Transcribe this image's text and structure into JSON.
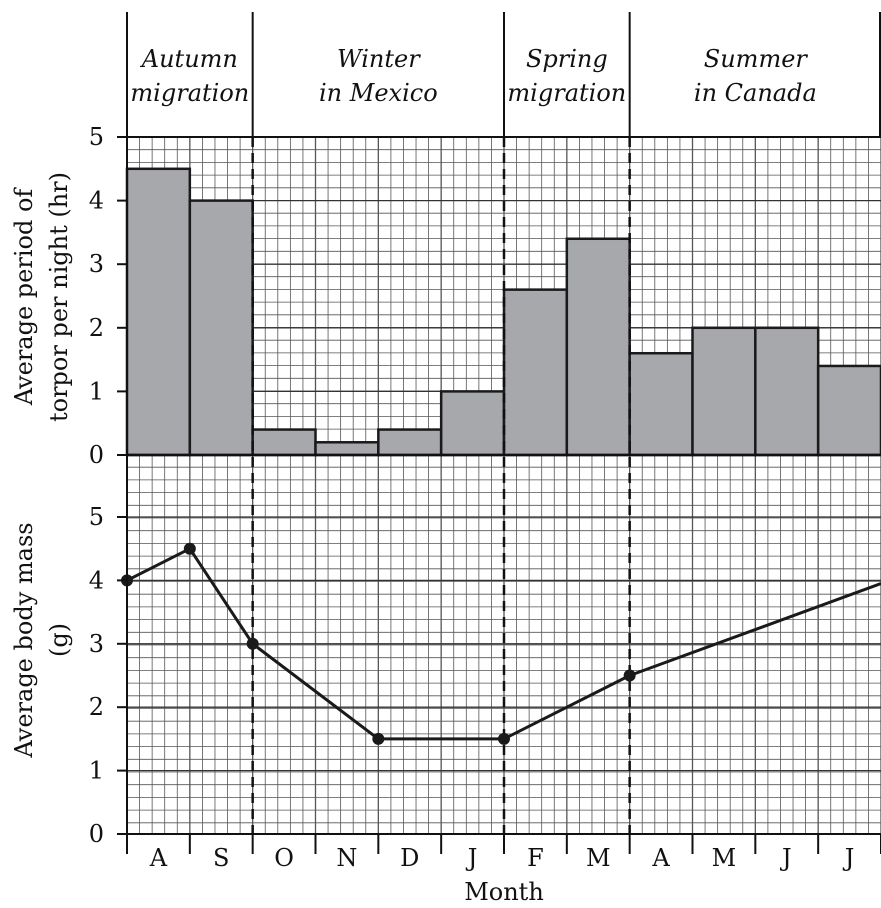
{
  "chart_data": [
    {
      "type": "bar",
      "ylabel_lines": [
        "Average period of",
        "torpor per night (hr)"
      ],
      "ylim": [
        0,
        5
      ],
      "yticks": [
        "0",
        "1",
        "2",
        "3",
        "4",
        "5"
      ],
      "categories": [
        "A",
        "S",
        "O",
        "N",
        "D",
        "J",
        "F",
        "M",
        "A",
        "M",
        "J",
        "J"
      ],
      "values": [
        4.5,
        4.0,
        0.4,
        0.2,
        0.4,
        1.0,
        2.6,
        3.4,
        1.6,
        2.0,
        2.0,
        1.4
      ],
      "grid": true,
      "colors": {
        "bar": "#a7a8ab",
        "outline": "#1a1a1a"
      }
    },
    {
      "type": "line",
      "ylabel_lines": [
        "Average body mass",
        "(g)"
      ],
      "ylim": [
        0,
        5
      ],
      "yticks": [
        "0",
        "1",
        "2",
        "3",
        "4",
        "5"
      ],
      "xlabel": "Month",
      "x_categories": [
        "A",
        "S",
        "O",
        "N",
        "D",
        "J",
        "F",
        "M",
        "A",
        "M",
        "J",
        "J"
      ],
      "x_domain": [
        0,
        12
      ],
      "points": [
        {
          "x": 0,
          "y": 4.0,
          "marker": true
        },
        {
          "x": 1,
          "y": 4.5,
          "marker": true
        },
        {
          "x": 2,
          "y": 3.0,
          "marker": true
        },
        {
          "x": 4,
          "y": 1.5,
          "marker": true
        },
        {
          "x": 6,
          "y": 1.5,
          "marker": true
        },
        {
          "x": 8,
          "y": 2.5,
          "marker": true
        },
        {
          "x": 12,
          "y": 3.95,
          "marker": false
        }
      ],
      "grid": true,
      "colors": {
        "line": "#1a1a1a"
      }
    }
  ],
  "seasons": [
    {
      "lines": [
        "Autumn",
        "migration"
      ],
      "start": 0,
      "end": 2
    },
    {
      "lines": [
        "Winter",
        "in Mexico"
      ],
      "start": 2,
      "end": 6
    },
    {
      "lines": [
        "Spring",
        "migration"
      ],
      "start": 6,
      "end": 8
    },
    {
      "lines": [
        "Summer",
        "in Canada"
      ],
      "start": 8,
      "end": 12
    }
  ]
}
